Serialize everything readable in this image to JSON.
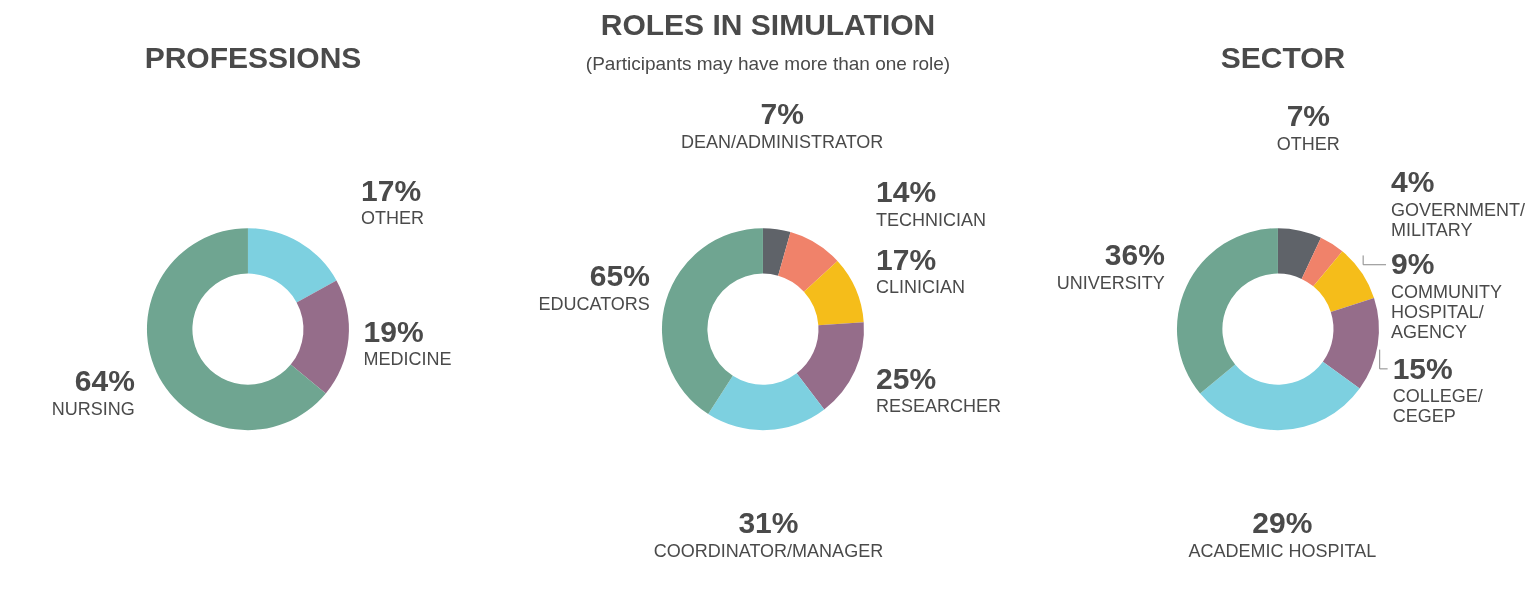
{
  "chart_data": [
    {
      "type": "donut",
      "title": "PROFESSIONS",
      "legend": false,
      "categories": [
        "OTHER",
        "MEDICINE",
        "NURSING"
      ],
      "values": [
        17,
        19,
        64
      ],
      "value_labels": [
        "17%",
        "19%",
        "64%"
      ],
      "colors": [
        "#7dd0e0",
        "#956d8a",
        "#6fa591"
      ]
    },
    {
      "type": "donut",
      "title": "ROLES IN SIMULATION",
      "subtitle": "(Participants may have more than one role)",
      "legend": false,
      "categories": [
        "DEAN/ADMINISTRATOR",
        "TECHNICIAN",
        "CLINICIAN",
        "RESEARCHER",
        "COORDINATOR/MANAGER",
        "EDUCATORS"
      ],
      "values": [
        7,
        14,
        17,
        25,
        31,
        65
      ],
      "value_labels": [
        "7%",
        "14%",
        "17%",
        "25%",
        "31%",
        "65%"
      ],
      "colors": [
        "#5f6369",
        "#f0826a",
        "#f5bd1a",
        "#956d8a",
        "#7dd0e0",
        "#6fa591"
      ]
    },
    {
      "type": "donut",
      "title": "SECTOR",
      "legend": false,
      "categories": [
        "OTHER",
        "GOVERNMENT/\nMILITARY",
        "COMMUNITY\nHOSPITAL/\nAGENCY",
        "COLLEGE/\nCEGEP",
        "ACADEMIC HOSPITAL",
        "UNIVERSITY"
      ],
      "values": [
        7,
        4,
        9,
        15,
        29,
        36
      ],
      "value_labels": [
        "7%",
        "4%",
        "9%",
        "15%",
        "29%",
        "36%"
      ],
      "colors": [
        "#5f6369",
        "#f0826a",
        "#f5bd1a",
        "#956d8a",
        "#7dd0e0",
        "#6fa591"
      ]
    }
  ]
}
